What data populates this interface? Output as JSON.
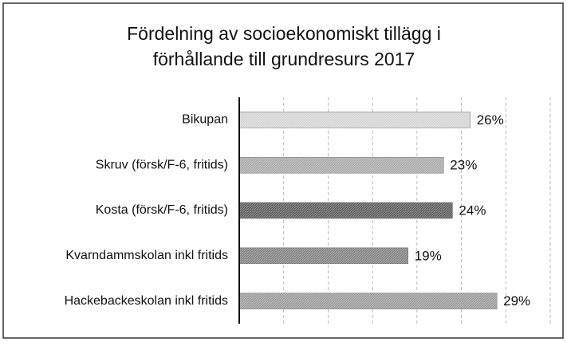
{
  "chart_data": {
    "type": "barh",
    "title": [
      "Fördelning av socioekonomiskt tillägg i",
      "förhållande till grundresurs 2017"
    ],
    "categories": [
      "Bikupan",
      "Skruv (försk/F-6, fritids)",
      "Kosta (försk/F-6, fritids)",
      "Kvarndammskolan inkl fritids",
      "Hackebackeskolan inkl fritids"
    ],
    "values": [
      26,
      23,
      24,
      19,
      29
    ],
    "value_labels": [
      "26%",
      "23%",
      "24%",
      "19%",
      "29%"
    ],
    "colors": [
      "#d4d4d4",
      "#a8a8a8",
      "#5a5a5a",
      "#808080",
      "#9a9a9a"
    ],
    "xlim": [
      0,
      35
    ],
    "xticks": [
      0,
      5,
      10,
      15,
      20,
      25,
      30,
      35
    ],
    "grid": true
  }
}
